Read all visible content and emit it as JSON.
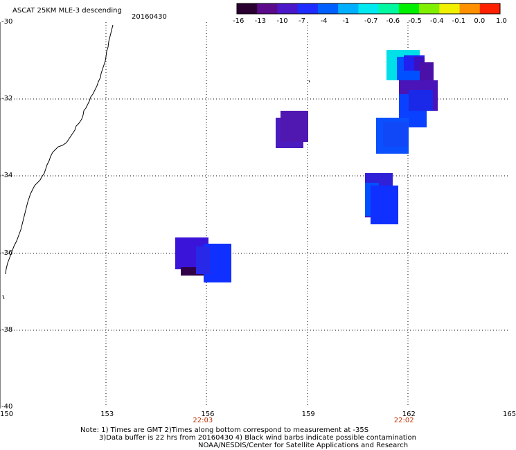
{
  "title": "ASCAT 25KM MLE-3 descending",
  "date": "20160430",
  "colorbar": {
    "labels": [
      "-16",
      "-13",
      "-10",
      "-7",
      "-4",
      "-1",
      "-0.7",
      "-0.6",
      "-0.5",
      "-0.4",
      "-0.1",
      "0.0",
      "1.0"
    ],
    "colors": [
      "#2a0030",
      "#5a0a8a",
      "#4a18c8",
      "#1e2cff",
      "#0060ff",
      "#00b0ff",
      "#00e8f0",
      "#00f8a0",
      "#00f000",
      "#80f000",
      "#f0f000",
      "#ff9000",
      "#ff2000"
    ]
  },
  "map": {
    "lat_labels": [
      "-30",
      "-32",
      "-34",
      "-36",
      "-38",
      "-40"
    ],
    "lon_labels": [
      "150",
      "153",
      "156",
      "159",
      "162",
      "165"
    ],
    "lat_values": [
      -30,
      -32,
      -34,
      -36,
      -38,
      -40
    ],
    "lon_values": [
      150,
      153,
      156,
      159,
      162,
      165
    ],
    "lat_range": [
      -40,
      -30
    ],
    "lon_range": [
      150,
      165
    ],
    "times": [
      {
        "label": "22:03",
        "lon": 156
      },
      {
        "label": "22:02",
        "lon": 162
      }
    ]
  },
  "note": {
    "line1": "Note: 1) Times are GMT 2)Times along bottom correspond to measurement at -35S",
    "line2": "3)Data buffer is 22 hrs from 20160430 4) Black wind barbs indicate possible contamination",
    "line3": "NOAA/NESDIS/Center for Satellite Applications and Research"
  }
}
